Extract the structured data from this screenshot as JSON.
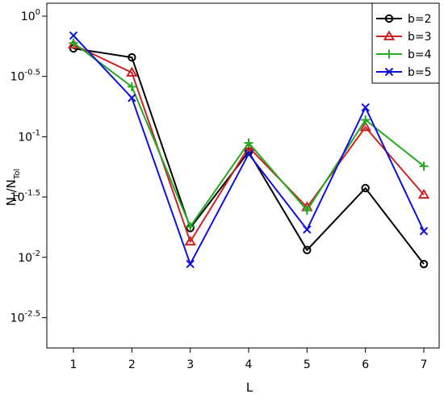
{
  "chart_data": {
    "type": "line",
    "x": [
      1,
      2,
      3,
      4,
      5,
      6,
      7
    ],
    "xlabel": "L",
    "ylabel": {
      "main": "N",
      "sub1": "L",
      "sep": "/N",
      "sub2": "Tol"
    },
    "y_scale": "log10",
    "ylim": [
      0.00245,
      1.0
    ],
    "xlim": [
      1,
      7
    ],
    "x_ticks": [
      "1",
      "2",
      "3",
      "4",
      "5",
      "6",
      "7"
    ],
    "y_ticks": [
      {
        "base": "10",
        "exp": "0"
      },
      {
        "base": "10",
        "exp": "-0.5"
      },
      {
        "base": "10",
        "exp": "-1"
      },
      {
        "base": "10",
        "exp": "-1.5"
      },
      {
        "base": "10",
        "exp": "-2"
      },
      {
        "base": "10",
        "exp": "-2.5"
      }
    ],
    "y_tick_values": [
      1.0,
      0.3162,
      0.1,
      0.03162,
      0.01,
      0.003162
    ],
    "legend_position": "top-right",
    "series": [
      {
        "name": "b=2",
        "color": "#000000",
        "marker": "circle",
        "values": [
          0.54,
          0.455,
          0.0175,
          0.075,
          0.0115,
          0.0375,
          0.0088
        ]
      },
      {
        "name": "b=3",
        "color": "#cc2222",
        "marker": "triangle",
        "values": [
          0.58,
          0.34,
          0.0135,
          0.082,
          0.026,
          0.12,
          0.033
        ]
      },
      {
        "name": "b=4",
        "color": "#22aa22",
        "marker": "plus",
        "values": [
          0.6,
          0.26,
          0.018,
          0.089,
          0.0245,
          0.138,
          0.057
        ]
      },
      {
        "name": "b=5",
        "color": "#1010dd",
        "marker": "x",
        "values": [
          0.69,
          0.21,
          0.0088,
          0.072,
          0.017,
          0.175,
          0.0165
        ]
      }
    ]
  }
}
